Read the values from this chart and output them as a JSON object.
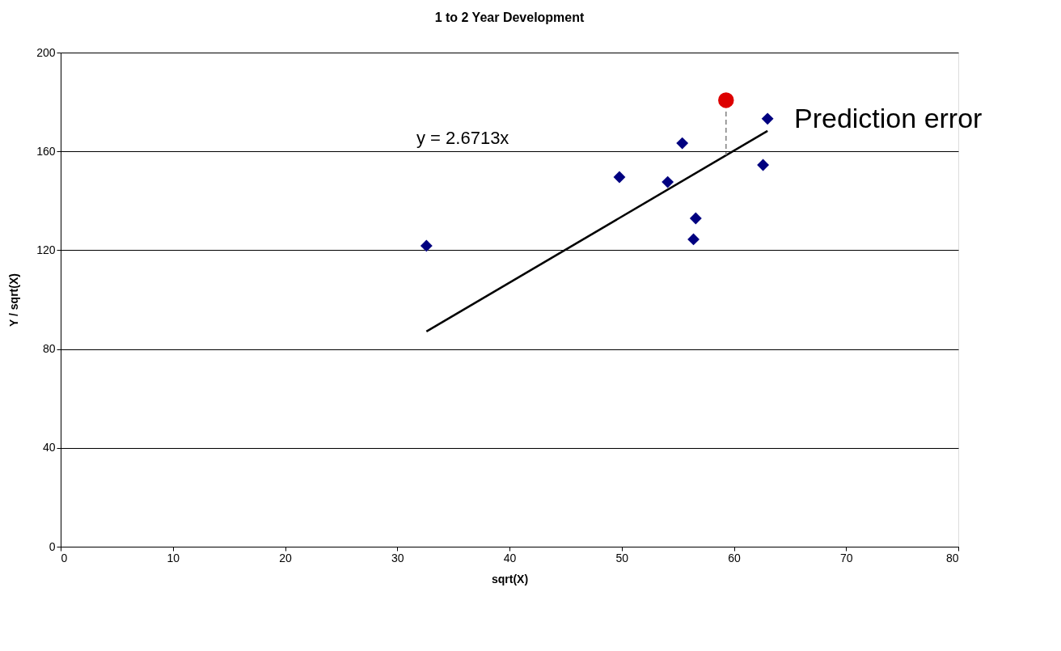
{
  "chart_data": {
    "type": "scatter",
    "title": "1 to 2 Year Development",
    "xlabel": "sqrt(X)",
    "ylabel": "Y / sqrt(X)",
    "xlim": [
      0,
      80
    ],
    "xticks": [
      0,
      10,
      20,
      30,
      40,
      50,
      60,
      70,
      80
    ],
    "ylim": [
      0,
      200
    ],
    "yticks": [
      0,
      40,
      80,
      120,
      160,
      200
    ],
    "grid": "y",
    "legend": false,
    "series": [
      {
        "type": "line",
        "color": "#000000",
        "x": [
          32.6,
          63.0
        ],
        "values": [
          87.1,
          168.3
        ],
        "marker": "none",
        "line_style": "solid"
      },
      {
        "type": "line",
        "color": "#808080",
        "x": [
          59.3,
          59.3
        ],
        "values": [
          176.1,
          158.4
        ],
        "marker": "none",
        "line_style": "dashed"
      },
      {
        "color": "#000080",
        "marker": "diamond",
        "x": [
          32.6,
          49.8,
          54.1,
          55.4,
          56.6,
          56.4,
          62.6,
          63.0
        ],
        "values": [
          121.8,
          149.6,
          147.6,
          163.3,
          132.9,
          124.4,
          154.5,
          173.2
        ]
      },
      {
        "color": "#dd0000",
        "marker": "circle",
        "x": [
          59.3
        ],
        "values": [
          180.7
        ]
      }
    ],
    "annotations": [
      "y = 2.6713x",
      "Prediction error"
    ]
  }
}
